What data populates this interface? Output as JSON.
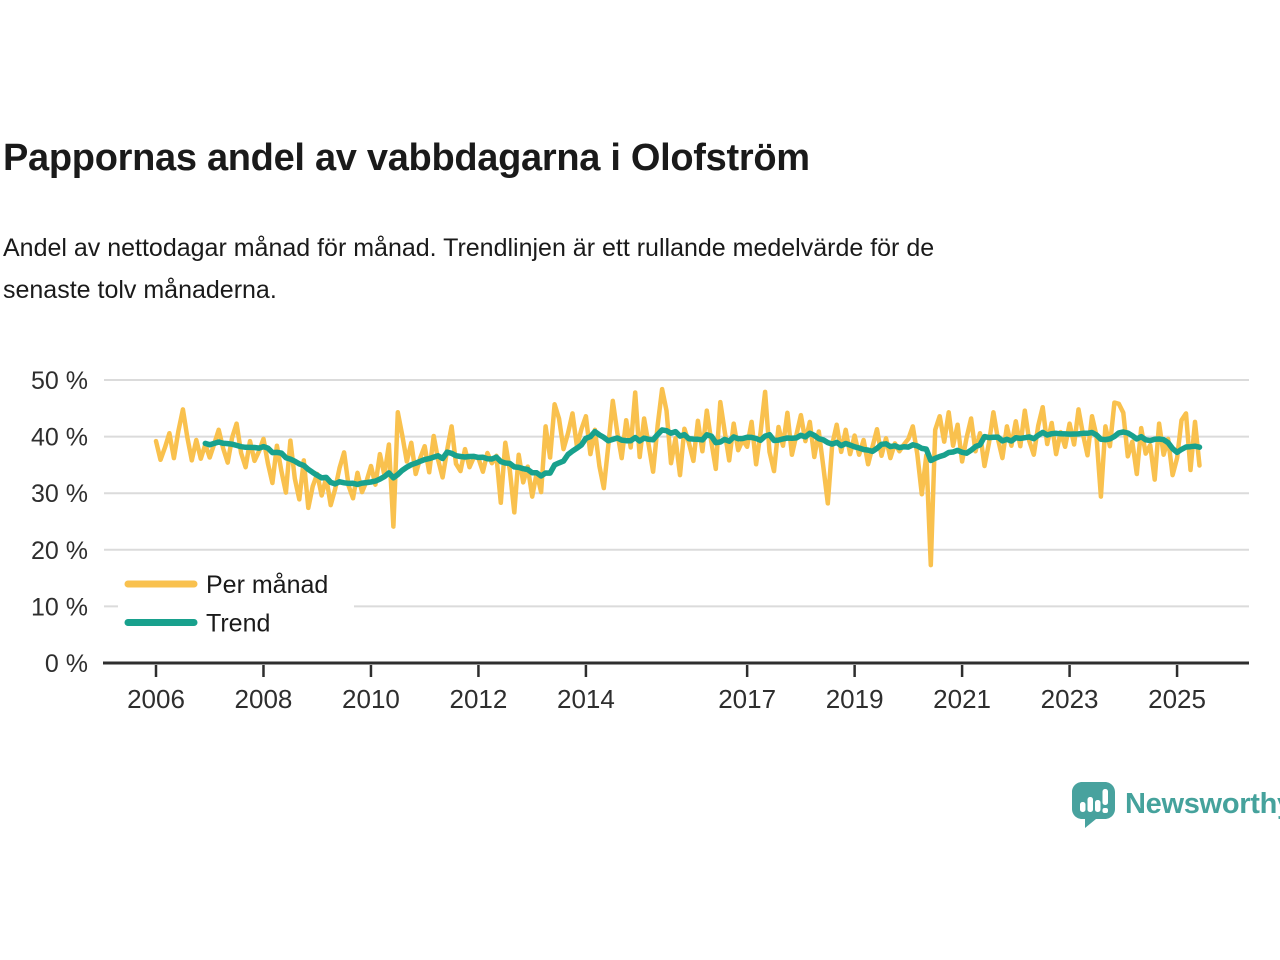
{
  "header": {
    "title": "Pappornas andel av vabbdagarna i Olofström",
    "subtitle_lines": [
      "Andel av nettodagar månad för månad. Trendlinjen är ett rullande medelvärde för de",
      "senaste tolv månaderna."
    ]
  },
  "footer": {
    "brand": "Newsworthy"
  },
  "colors": {
    "monthly_line": "#F9C14E",
    "trend_line": "#18A18D",
    "brand_teal": "#48A29E",
    "grid": "#DBDBDB",
    "axis": "#2E2E2E",
    "text": "#1A1A1A"
  },
  "chart_data": {
    "type": "line",
    "title": "Pappornas andel av vabbdagarna i Olofström",
    "subtitle": "Andel av nettodagar månad för månad. Trendlinjen är ett rullande medelvärde för de senaste tolv månaderna.",
    "unit": "%",
    "x_start": "2006-01",
    "x_end": "2025-06",
    "x_interval": "monthly",
    "ylim": [
      0,
      50
    ],
    "grid": "horizontal",
    "legend_position": "inside-bottom-left",
    "y_ticks": [
      {
        "value": 0,
        "label": "0 %"
      },
      {
        "value": 10,
        "label": "10 %"
      },
      {
        "value": 20,
        "label": "20 %"
      },
      {
        "value": 30,
        "label": "30 %"
      },
      {
        "value": 40,
        "label": "40 %"
      },
      {
        "value": 50,
        "label": "50 %"
      }
    ],
    "x_ticks": [
      {
        "value": 2006,
        "label": "2006"
      },
      {
        "value": 2008,
        "label": "2008"
      },
      {
        "value": 2010,
        "label": "2010"
      },
      {
        "value": 2012,
        "label": "2012"
      },
      {
        "value": 2014,
        "label": "2014"
      },
      {
        "value": 2017,
        "label": "2017"
      },
      {
        "value": 2019,
        "label": "2019"
      },
      {
        "value": 2021,
        "label": "2021"
      },
      {
        "value": 2023,
        "label": "2023"
      },
      {
        "value": 2025,
        "label": "2025"
      }
    ],
    "series": [
      {
        "name": "Per månad",
        "color": "#F9C14E",
        "values": [
          39.2,
          35.9,
          38.1,
          40.6,
          36.2,
          41.0,
          44.8,
          39.9,
          35.8,
          39.4,
          36.1,
          38.6,
          36.3,
          38.7,
          41.2,
          37.9,
          35.4,
          39.8,
          42.3,
          37.1,
          34.6,
          39.2,
          35.7,
          37.4,
          39.6,
          35.2,
          31.8,
          38.4,
          33.9,
          30.1,
          39.3,
          32.6,
          28.9,
          35.8,
          27.4,
          31.2,
          33.4,
          29.6,
          32.8,
          27.9,
          30.7,
          34.5,
          37.2,
          31.3,
          29.1,
          33.6,
          30.2,
          32.1,
          34.8,
          31.5,
          36.9,
          33.2,
          38.6,
          24.1,
          44.3,
          40.2,
          35.6,
          38.9,
          33.4,
          36.2,
          38.3,
          33.7,
          40.1,
          35.9,
          32.8,
          37.6,
          41.8,
          35.2,
          33.9,
          37.8,
          34.6,
          36.4,
          36.2,
          33.8,
          37.1,
          35.3,
          36.6,
          28.3,
          38.9,
          34.1,
          26.6,
          36.8,
          31.9,
          34.7,
          29.4,
          33.6,
          30.2,
          41.8,
          36.3,
          45.7,
          43.2,
          37.8,
          40.6,
          44.1,
          38.2,
          41.3,
          43.6,
          36.9,
          41.2,
          34.8,
          30.9,
          38.4,
          46.3,
          40.7,
          36.2,
          42.9,
          38.1,
          47.8,
          36.4,
          43.2,
          38.6,
          33.8,
          41.9,
          48.4,
          44.6,
          35.3,
          39.7,
          33.2,
          41.4,
          38.9,
          35.7,
          42.8,
          37.4,
          44.6,
          39.1,
          34.3,
          46.1,
          40.9,
          35.8,
          42.3,
          37.6,
          39.4,
          38.2,
          42.6,
          35.1,
          40.8,
          47.9,
          37.3,
          33.9,
          41.7,
          38.4,
          44.2,
          36.8,
          40.3,
          43.8,
          39.2,
          42.6,
          36.4,
          40.9,
          34.7,
          28.2,
          38.6,
          42.1,
          37.3,
          41.2,
          36.9,
          40.2,
          36.8,
          39.4,
          35.1,
          38.2,
          41.3,
          36.6,
          39.7,
          36.2,
          38.8,
          37.4,
          38.6,
          39.6,
          41.8,
          36.9,
          29.8,
          36.7,
          17.3,
          41.2,
          43.6,
          39.1,
          44.3,
          38.4,
          42.1,
          35.6,
          39.8,
          43.2,
          37.4,
          40.6,
          34.8,
          38.9,
          44.3,
          39.6,
          36.2,
          41.8,
          38.4,
          42.7,
          38.3,
          44.6,
          39.2,
          36.8,
          41.9,
          45.2,
          38.7,
          42.4,
          36.9,
          40.8,
          38.2,
          42.3,
          38.6,
          44.8,
          40.4,
          36.7,
          43.6,
          40.2,
          29.4,
          41.8,
          38.3,
          46.0,
          45.8,
          44.2,
          36.5,
          39.1,
          33.4,
          41.5,
          37.0,
          38.5,
          32.4,
          42.3,
          36.8,
          39.6,
          33.2,
          36.2,
          42.9,
          44.1,
          34.1,
          42.6,
          34.9
        ]
      },
      {
        "name": "Trend",
        "color": "#18A18D",
        "derivation": "rolling mean of the latest 12 months of series 'Per månad'"
      }
    ]
  }
}
